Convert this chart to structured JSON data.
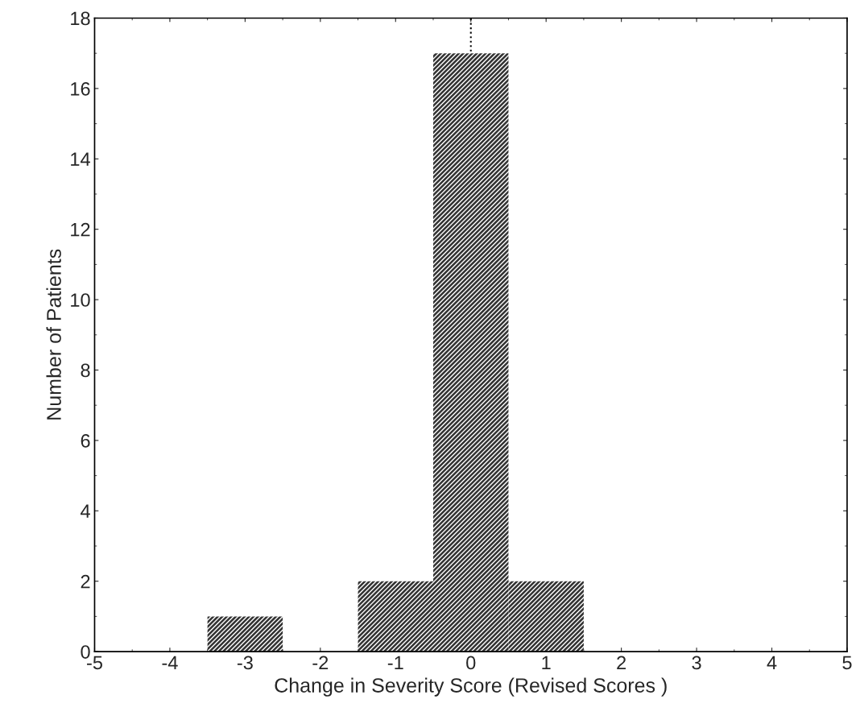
{
  "chart_data": {
    "type": "histogram",
    "xlabel": "Change in Severity Score (Revised Scores )",
    "ylabel": "Number of Patients",
    "bins": [
      -3.5,
      -2.5,
      -1.5,
      -0.5,
      0.5,
      1.5
    ],
    "values": [
      1,
      0,
      2,
      17,
      2
    ],
    "color": "#333333",
    "xlim": [
      -5,
      5
    ],
    "xticks": [
      -5,
      -4,
      -3,
      -2,
      -1,
      0,
      1,
      2,
      3,
      4,
      5
    ],
    "ylim": [
      0,
      18
    ],
    "yticks": [
      0,
      2,
      4,
      6,
      8,
      10,
      12,
      14,
      16,
      18
    ],
    "ref_lines": [
      {
        "axis": "x",
        "value": 0,
        "label": null,
        "line_style": "dotted",
        "color": "#000000"
      }
    ],
    "grid": false,
    "legend": false
  }
}
